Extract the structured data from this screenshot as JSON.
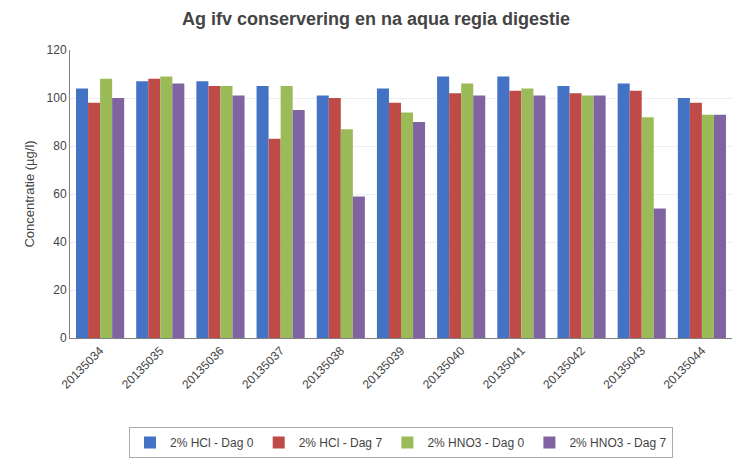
{
  "chart_data": {
    "type": "bar",
    "title": "Ag ifv conservering en na aqua regia digestie",
    "ylabel": "Concentratie (µg/l)",
    "categories": [
      "20135034",
      "20135035",
      "20135036",
      "20135037",
      "20135038",
      "20135039",
      "20135040",
      "20135041",
      "20135042",
      "20135043",
      "20135044"
    ],
    "series": [
      {
        "name": "2% HCl - Dag 0",
        "color": "#4472C4",
        "values": [
          104,
          107,
          107,
          105,
          101,
          104,
          109,
          109,
          105,
          106,
          100
        ]
      },
      {
        "name": "2% HCl - Dag 7",
        "color": "#BE4B48",
        "values": [
          98,
          108,
          105,
          83,
          100,
          98,
          102,
          103,
          102,
          103,
          98
        ]
      },
      {
        "name": "2% HNO3 - Dag 0",
        "color": "#9BBB59",
        "values": [
          108,
          109,
          105,
          105,
          87,
          94,
          106,
          104,
          101,
          92,
          93
        ]
      },
      {
        "name": "2% HNO3 - Dag 7",
        "color": "#8064A2",
        "values": [
          100,
          106,
          101,
          95,
          59,
          90,
          101,
          101,
          101,
          54,
          93
        ]
      }
    ],
    "ylim": [
      0,
      120
    ],
    "yticks": [
      0,
      20,
      40,
      60,
      80,
      100,
      120
    ],
    "grid": true,
    "legend": "bottom"
  }
}
